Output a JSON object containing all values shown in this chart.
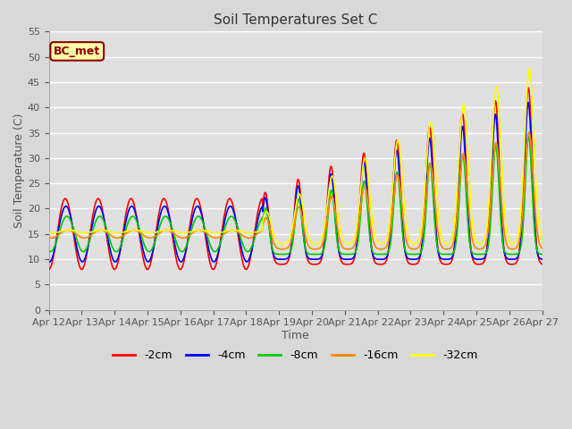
{
  "title": "Soil Temperatures Set C",
  "xlabel": "Time",
  "ylabel": "Soil Temperature (C)",
  "annotation": "BC_met",
  "ylim": [
    0,
    55
  ],
  "yticks": [
    0,
    5,
    10,
    15,
    20,
    25,
    30,
    35,
    40,
    45,
    50,
    55
  ],
  "xtick_labels": [
    "Apr 12",
    "Apr 13",
    "Apr 14",
    "Apr 15",
    "Apr 16",
    "Apr 17",
    "Apr 18",
    "Apr 19",
    "Apr 20",
    "Apr 21",
    "Apr 22",
    "Apr 23",
    "Apr 24",
    "Apr 25",
    "Apr 26",
    "Apr 27"
  ],
  "series_labels": [
    "-2cm",
    "-4cm",
    "-8cm",
    "-16cm",
    "-32cm"
  ],
  "series_colors": [
    "#ff0000",
    "#0000ff",
    "#00cc00",
    "#ff8800",
    "#ffff00"
  ],
  "line_widths": [
    1.2,
    1.2,
    1.2,
    1.2,
    1.2
  ],
  "fig_bg": "#d8d8d8",
  "plot_bg": "#e0e0e0",
  "grid_color": "#ffffff",
  "title_fontsize": 11,
  "axis_fontsize": 9,
  "tick_fontsize": 8,
  "legend_fontsize": 9,
  "annotation_color": "#8B0000",
  "annotation_bg": "#ffffaa"
}
